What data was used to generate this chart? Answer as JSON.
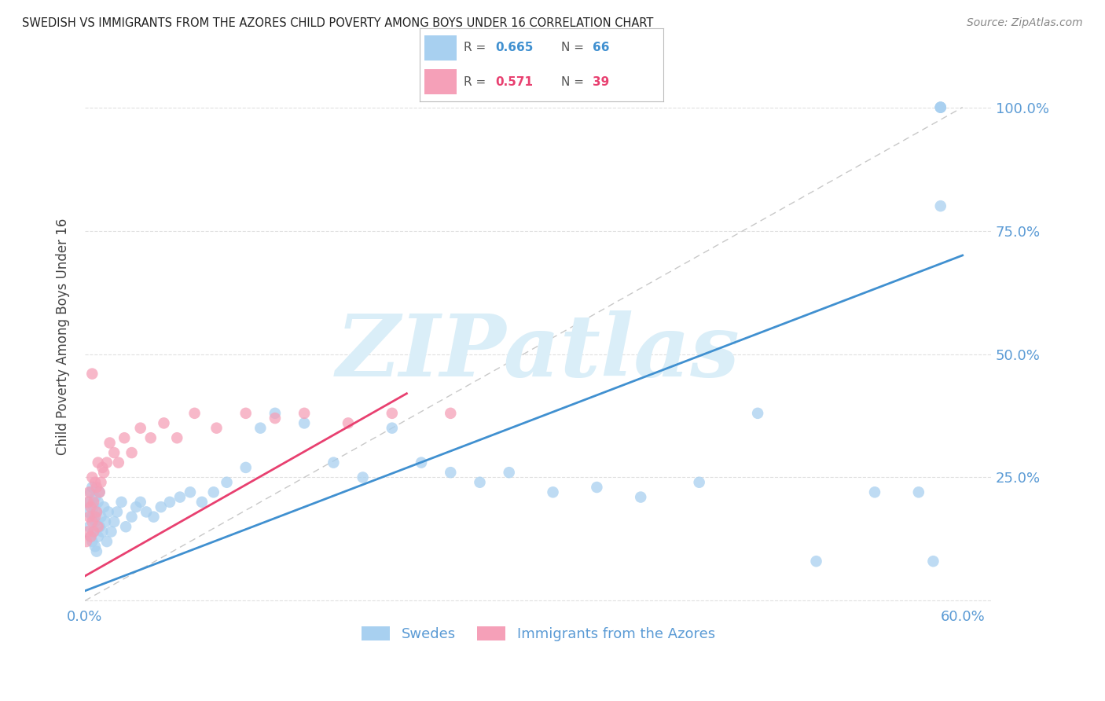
{
  "title": "SWEDISH VS IMMIGRANTS FROM THE AZORES CHILD POVERTY AMONG BOYS UNDER 16 CORRELATION CHART",
  "source": "Source: ZipAtlas.com",
  "ylabel": "Child Poverty Among Boys Under 16",
  "r_swedish": 0.665,
  "n_swedish": 66,
  "r_azores": 0.571,
  "n_azores": 39,
  "legend_label_swedish": "Swedes",
  "legend_label_azores": "Immigrants from the Azores",
  "xlim": [
    0.0,
    0.62
  ],
  "ylim": [
    -0.01,
    1.08
  ],
  "swedish_color": "#a8d0f0",
  "azores_color": "#f5a0b8",
  "swedish_line_color": "#4090d0",
  "azores_line_color": "#e84070",
  "diag_color": "#c8c8c8",
  "background_color": "#ffffff",
  "watermark_text": "ZIPatlas",
  "watermark_color": "#daeef8",
  "tick_color": "#5b9bd5",
  "grid_color": "#e0e0e0",
  "swedes_x": [
    0.002,
    0.003,
    0.003,
    0.004,
    0.004,
    0.005,
    0.005,
    0.005,
    0.006,
    0.006,
    0.007,
    0.007,
    0.007,
    0.008,
    0.008,
    0.009,
    0.009,
    0.01,
    0.01,
    0.011,
    0.012,
    0.013,
    0.014,
    0.015,
    0.016,
    0.018,
    0.02,
    0.022,
    0.025,
    0.028,
    0.032,
    0.035,
    0.038,
    0.042,
    0.047,
    0.052,
    0.058,
    0.065,
    0.072,
    0.08,
    0.088,
    0.097,
    0.11,
    0.12,
    0.13,
    0.15,
    0.17,
    0.19,
    0.21,
    0.23,
    0.25,
    0.27,
    0.29,
    0.32,
    0.35,
    0.38,
    0.42,
    0.46,
    0.5,
    0.54,
    0.57,
    0.58,
    0.585,
    0.585,
    0.585,
    0.585
  ],
  "swedes_y": [
    0.18,
    0.15,
    0.2,
    0.13,
    0.22,
    0.12,
    0.17,
    0.23,
    0.14,
    0.19,
    0.11,
    0.16,
    0.21,
    0.1,
    0.18,
    0.13,
    0.2,
    0.15,
    0.22,
    0.17,
    0.14,
    0.19,
    0.16,
    0.12,
    0.18,
    0.14,
    0.16,
    0.18,
    0.2,
    0.15,
    0.17,
    0.19,
    0.2,
    0.18,
    0.17,
    0.19,
    0.2,
    0.21,
    0.22,
    0.2,
    0.22,
    0.24,
    0.27,
    0.35,
    0.38,
    0.36,
    0.28,
    0.25,
    0.35,
    0.28,
    0.26,
    0.24,
    0.26,
    0.22,
    0.23,
    0.21,
    0.24,
    0.38,
    0.08,
    0.22,
    0.22,
    0.08,
    1.0,
    1.0,
    1.0,
    0.8
  ],
  "azores_x": [
    0.001,
    0.002,
    0.002,
    0.003,
    0.003,
    0.004,
    0.004,
    0.005,
    0.005,
    0.006,
    0.006,
    0.007,
    0.007,
    0.008,
    0.008,
    0.009,
    0.009,
    0.01,
    0.011,
    0.012,
    0.013,
    0.015,
    0.017,
    0.02,
    0.023,
    0.027,
    0.032,
    0.038,
    0.045,
    0.054,
    0.063,
    0.075,
    0.09,
    0.11,
    0.13,
    0.15,
    0.18,
    0.21,
    0.25
  ],
  "azores_y": [
    0.12,
    0.2,
    0.14,
    0.17,
    0.22,
    0.13,
    0.19,
    0.16,
    0.25,
    0.14,
    0.2,
    0.17,
    0.24,
    0.18,
    0.23,
    0.15,
    0.28,
    0.22,
    0.24,
    0.27,
    0.26,
    0.28,
    0.32,
    0.3,
    0.28,
    0.33,
    0.3,
    0.35,
    0.33,
    0.36,
    0.33,
    0.38,
    0.35,
    0.38,
    0.37,
    0.38,
    0.36,
    0.38,
    0.38
  ],
  "azores_outlier_x": [
    0.005
  ],
  "azores_outlier_y": [
    0.46
  ]
}
